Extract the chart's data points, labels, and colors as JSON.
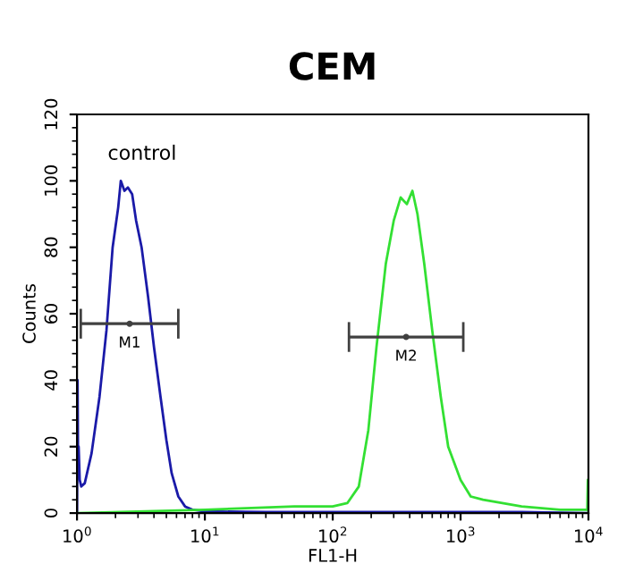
{
  "chart_data": {
    "type": "line",
    "title": "CEM",
    "xlabel": "FL1-H",
    "ylabel": "Counts",
    "log": "x",
    "xlim": [
      1,
      10000
    ],
    "xticks": [
      {
        "value": 1,
        "label": "10$^{0}$"
      },
      {
        "value": 10,
        "label": "10$^{1}$"
      },
      {
        "value": 100,
        "label": "10$^{2}$"
      },
      {
        "value": 1000,
        "label": "10$^{3}$"
      },
      {
        "value": 10000,
        "label": "10$^{4}$"
      }
    ],
    "ylim": [
      0,
      120
    ],
    "yticks": [
      0,
      20,
      40,
      60,
      80,
      100,
      120
    ],
    "grid": false,
    "legend": false,
    "marker": "none",
    "line_style": "solid",
    "series": [
      {
        "color": "#1a1aa8",
        "x": [
          1.0,
          1.01,
          1.02,
          1.03,
          1.05,
          1.08,
          1.15,
          1.3,
          1.5,
          1.7,
          1.9,
          2.1,
          2.2,
          2.35,
          2.5,
          2.7,
          2.9,
          3.2,
          3.6,
          4.0,
          4.5,
          5.0,
          5.5,
          6.2,
          7,
          8,
          10,
          30,
          100,
          300,
          1000,
          3000,
          10000
        ],
        "values": [
          0,
          40,
          15,
          20,
          10,
          8,
          9,
          18,
          35,
          55,
          80,
          92,
          100,
          97,
          98,
          96,
          88,
          80,
          65,
          50,
          35,
          22,
          12,
          5,
          2,
          1,
          0.5,
          0.3,
          0.3,
          0.3,
          0.3,
          0.3,
          0
        ]
      },
      {
        "color": "#33e033",
        "x": [
          1,
          10,
          50,
          100,
          130,
          160,
          190,
          220,
          260,
          300,
          340,
          380,
          420,
          460,
          520,
          600,
          700,
          800,
          1000,
          1200,
          1500,
          3000,
          6000,
          9500,
          9800,
          9900,
          10000
        ],
        "values": [
          0,
          1,
          2,
          2,
          3,
          8,
          25,
          50,
          75,
          88,
          95,
          93,
          97,
          90,
          75,
          55,
          35,
          20,
          10,
          5,
          4,
          2,
          1,
          1,
          1,
          10,
          0
        ]
      },
      {
        "type": "scatter",
        "color": "#404040",
        "x": [
          2.58
        ],
        "values": [
          57
        ],
        "xerrors": [
          [
            1.07,
            6.2
          ]
        ],
        "value_labels": [
          "M1"
        ]
      },
      {
        "type": "scatter",
        "color": "#404040",
        "x": [
          375
        ],
        "values": [
          53
        ],
        "xerrors": [
          [
            134,
            1050
          ]
        ],
        "value_labels": [
          "M2"
        ]
      }
    ],
    "annotations": [
      "control"
    ]
  }
}
